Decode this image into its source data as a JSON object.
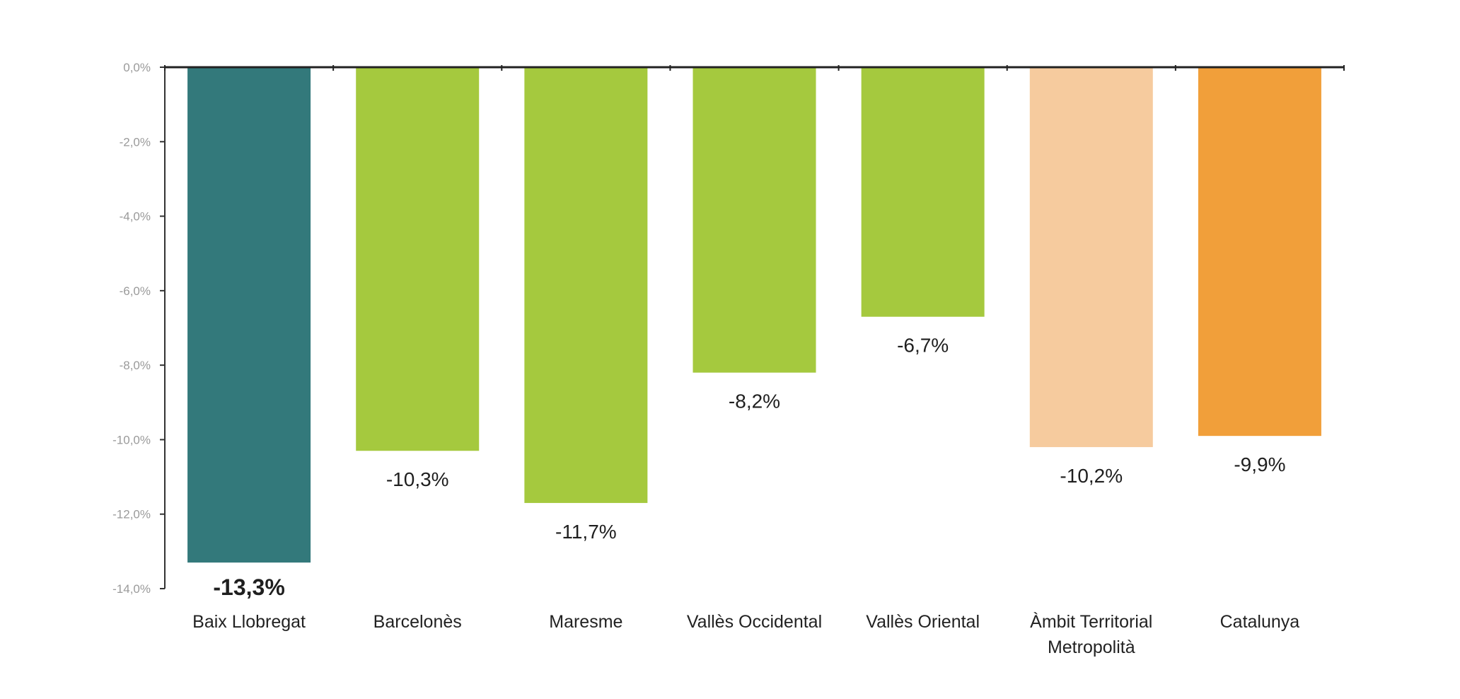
{
  "chart_data": {
    "type": "bar",
    "categories": [
      [
        "Baix Llobregat"
      ],
      [
        "Barcelonès"
      ],
      [
        "Maresme"
      ],
      [
        "Vallès Occidental"
      ],
      [
        "Vallès Oriental"
      ],
      [
        "Àmbit Territorial",
        "Metropolità"
      ],
      [
        "Catalunya"
      ]
    ],
    "values": [
      -13.3,
      -10.3,
      -11.7,
      -8.2,
      -6.7,
      -10.2,
      -9.9
    ],
    "value_labels": [
      "-13,3%",
      "-10,3%",
      "-11,7%",
      "-8,2%",
      "-6,7%",
      "-10,2%",
      "-9,9%"
    ],
    "bar_colors": [
      "#33797b",
      "#a5c93e",
      "#a5c93e",
      "#a5c93e",
      "#a5c93e",
      "#f6cb9e",
      "#f19f3a"
    ],
    "highlight_index": 0,
    "ylim": [
      -14,
      0
    ],
    "y_ticks": [
      0,
      -2,
      -4,
      -6,
      -8,
      -10,
      -12,
      -14
    ],
    "y_tick_labels": [
      "0,0%",
      "-2,0%",
      "-4,0%",
      "-6,0%",
      "-8,0%",
      "-10,0%",
      "-12,0%",
      "-14,0%"
    ],
    "title": "",
    "xlabel": "",
    "ylabel": "",
    "grid": false,
    "legend": "none"
  }
}
